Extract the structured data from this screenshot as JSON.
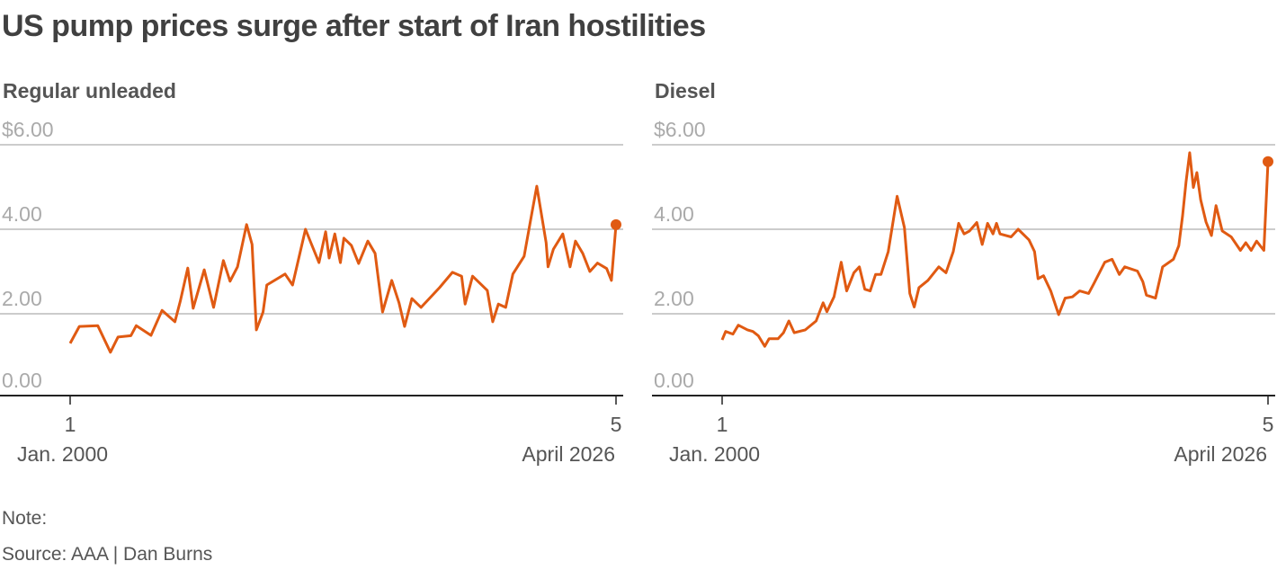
{
  "title": "US pump prices surge after start of Iran hostilities",
  "note": "Note:",
  "source": "Source: AAA | Dan Burns",
  "colors": {
    "line": "#E05A12",
    "grid": "#cccccc",
    "axis": "#222222"
  },
  "chart_data": [
    {
      "type": "line",
      "title": "Regular unleaded",
      "ylim": [
        0,
        6
      ],
      "yticks": [
        {
          "v": 6,
          "label": "$6.00"
        },
        {
          "v": 4,
          "label": "4.00"
        },
        {
          "v": 2,
          "label": "2.00"
        },
        {
          "v": 0,
          "label": "0.00"
        }
      ],
      "xlim": [
        2000.0,
        2026.26
      ],
      "xticks": [
        {
          "x": 2000.0,
          "day": "1",
          "label": "Jan. 2000",
          "anchor": "start"
        },
        {
          "x": 2026.26,
          "day": "5",
          "label": "April 2026",
          "anchor": "end"
        }
      ],
      "grid": true,
      "endpoint_marker": true,
      "x": [
        2000.0,
        2000.44,
        2001.33,
        2001.94,
        2002.3,
        2002.92,
        2003.18,
        2003.89,
        2004.42,
        2005.04,
        2005.3,
        2005.66,
        2005.92,
        2006.45,
        2006.9,
        2007.37,
        2007.69,
        2008.05,
        2008.49,
        2008.75,
        2008.96,
        2009.28,
        2009.46,
        2010.34,
        2010.7,
        2011.32,
        2011.58,
        2011.97,
        2012.29,
        2012.46,
        2012.73,
        2013.0,
        2013.17,
        2013.53,
        2013.88,
        2014.32,
        2014.67,
        2015.03,
        2015.47,
        2015.82,
        2016.09,
        2016.44,
        2016.88,
        2017.77,
        2018.39,
        2018.83,
        2019.0,
        2019.36,
        2020.07,
        2020.33,
        2020.6,
        2020.95,
        2021.3,
        2021.84,
        2022.19,
        2022.45,
        2022.9,
        2022.99,
        2023.25,
        2023.7,
        2024.05,
        2024.31,
        2024.66,
        2025.0,
        2025.37,
        2025.81,
        2026.04,
        2026.26
      ],
      "values": [
        1.3,
        1.7,
        1.72,
        1.09,
        1.45,
        1.48,
        1.72,
        1.49,
        2.08,
        1.81,
        2.3,
        3.08,
        2.13,
        3.04,
        2.15,
        3.26,
        2.77,
        3.11,
        4.11,
        3.64,
        1.62,
        2.04,
        2.68,
        2.94,
        2.68,
        4.0,
        3.68,
        3.21,
        3.94,
        3.32,
        3.89,
        3.21,
        3.79,
        3.62,
        3.19,
        3.72,
        3.43,
        2.04,
        2.79,
        2.26,
        1.7,
        2.36,
        2.15,
        2.62,
        2.98,
        2.89,
        2.23,
        2.89,
        2.55,
        1.81,
        2.23,
        2.15,
        2.94,
        3.36,
        4.32,
        5.02,
        3.68,
        3.11,
        3.53,
        3.89,
        3.11,
        3.72,
        3.43,
        3.0,
        3.2,
        3.07,
        2.79,
        4.11
      ]
    },
    {
      "type": "line",
      "title": "Diesel",
      "ylim": [
        0,
        6
      ],
      "yticks": [
        {
          "v": 6,
          "label": "$6.00"
        },
        {
          "v": 4,
          "label": "4.00"
        },
        {
          "v": 2,
          "label": "2.00"
        },
        {
          "v": 0,
          "label": "0.00"
        }
      ],
      "xlim": [
        2000.0,
        2026.26
      ],
      "xticks": [
        {
          "x": 2000.0,
          "day": "1",
          "label": "Jan. 2000",
          "anchor": "start"
        },
        {
          "x": 2026.26,
          "day": "5",
          "label": "April 2026",
          "anchor": "end"
        }
      ],
      "grid": true,
      "endpoint_marker": true,
      "x": [
        2000.0,
        2000.17,
        2000.52,
        2000.78,
        2001.22,
        2001.48,
        2001.74,
        2002.05,
        2002.26,
        2002.69,
        2002.95,
        2003.21,
        2003.47,
        2004.0,
        2004.52,
        2004.86,
        2005.04,
        2005.38,
        2005.73,
        2005.99,
        2006.34,
        2006.6,
        2006.86,
        2007.12,
        2007.38,
        2007.64,
        2007.99,
        2008.42,
        2008.77,
        2009.03,
        2009.24,
        2009.47,
        2009.9,
        2010.42,
        2010.77,
        2011.12,
        2011.38,
        2011.64,
        2011.9,
        2012.25,
        2012.51,
        2012.77,
        2013.03,
        2013.2,
        2013.37,
        2013.9,
        2014.24,
        2014.76,
        2015.03,
        2015.2,
        2015.46,
        2015.81,
        2016.19,
        2016.5,
        2016.85,
        2017.2,
        2017.63,
        2017.89,
        2018.41,
        2018.76,
        2019.11,
        2019.37,
        2019.98,
        2020.24,
        2020.41,
        2020.85,
        2021.19,
        2021.71,
        2021.97,
        2022.15,
        2022.32,
        2022.49,
        2022.67,
        2022.84,
        2023.02,
        2023.28,
        2023.54,
        2023.76,
        2024.06,
        2024.49,
        2024.93,
        2025.19,
        2025.45,
        2025.71,
        2026.06,
        2026.26
      ],
      "values": [
        1.38,
        1.58,
        1.52,
        1.73,
        1.62,
        1.58,
        1.48,
        1.23,
        1.41,
        1.41,
        1.55,
        1.83,
        1.55,
        1.62,
        1.83,
        2.26,
        2.05,
        2.4,
        3.22,
        2.54,
        2.97,
        3.11,
        2.58,
        2.54,
        2.93,
        2.93,
        3.47,
        4.78,
        4.04,
        2.48,
        2.16,
        2.62,
        2.79,
        3.11,
        2.97,
        3.47,
        4.14,
        3.89,
        3.96,
        4.16,
        3.64,
        4.14,
        3.89,
        4.14,
        3.89,
        3.82,
        4.0,
        3.75,
        3.47,
        2.83,
        2.9,
        2.54,
        1.98,
        2.37,
        2.4,
        2.54,
        2.48,
        2.72,
        3.22,
        3.29,
        2.93,
        3.11,
        3.01,
        2.76,
        2.44,
        2.37,
        3.11,
        3.29,
        3.61,
        4.32,
        5.13,
        5.81,
        4.99,
        5.34,
        4.7,
        4.17,
        3.85,
        4.56,
        3.96,
        3.82,
        3.5,
        3.68,
        3.5,
        3.72,
        3.5,
        5.6
      ]
    }
  ]
}
